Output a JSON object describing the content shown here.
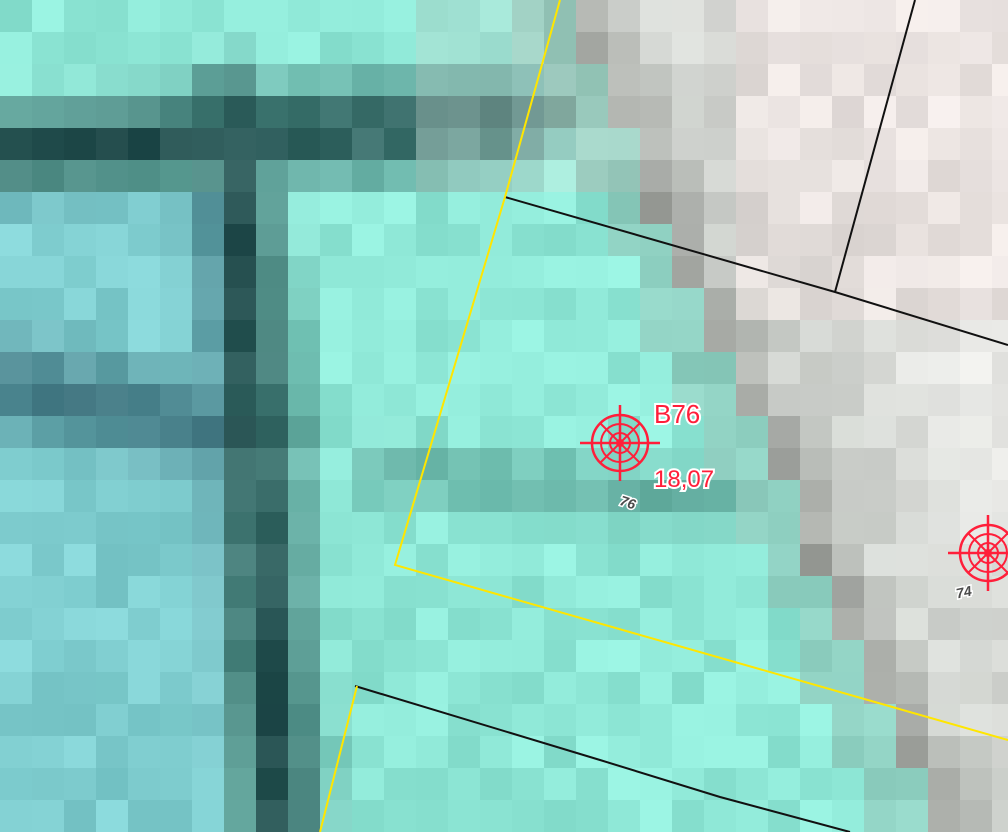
{
  "map": {
    "colors": {
      "cadastral_line": "#111111",
      "highlight_line": "#ffe600",
      "marker": "#ff1f3a",
      "number_label": "#4a4a4a",
      "water_light": "#8fe8d7",
      "water_dark": "#0f2f33",
      "land": "#e6e6e3"
    },
    "points": [
      {
        "id": "B76",
        "name_label": "B76",
        "elevation_label": "18,07",
        "number_label": "76",
        "icon": "target-crosshair-icon"
      },
      {
        "id": "74",
        "number_label": "74",
        "icon": "target-crosshair-icon"
      }
    ]
  }
}
